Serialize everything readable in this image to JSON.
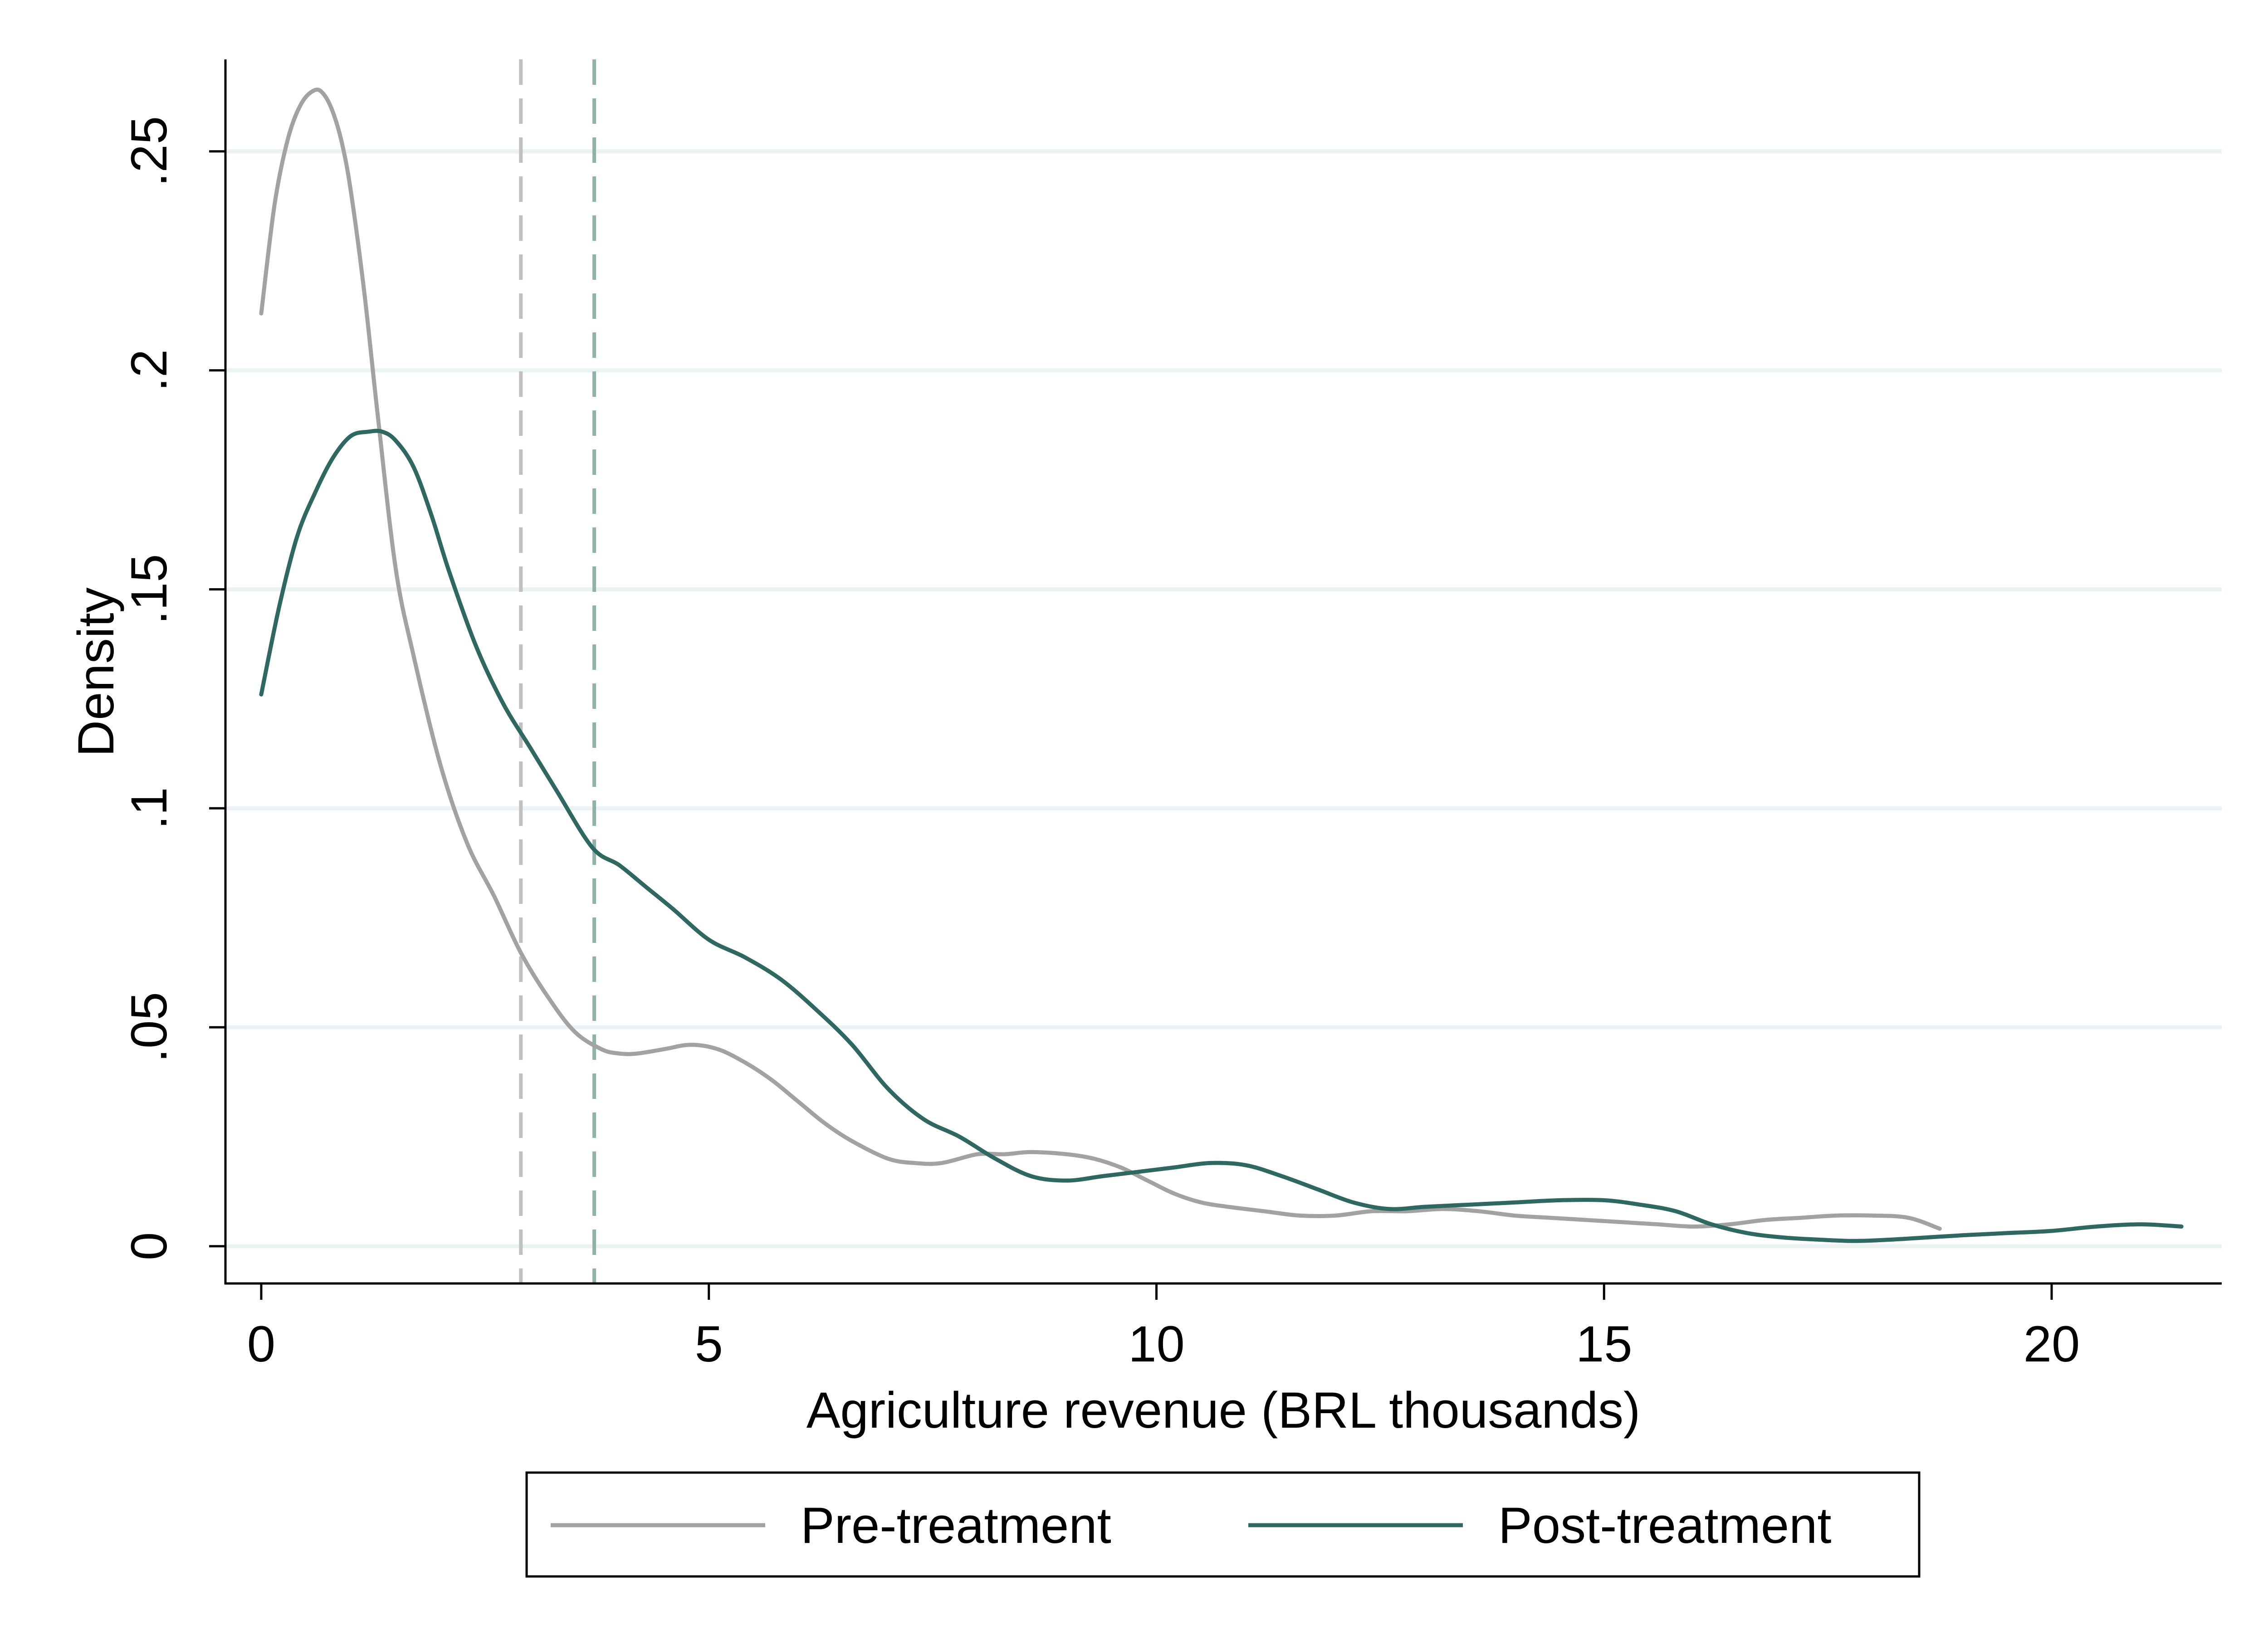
{
  "chart_data": {
    "type": "line",
    "title": "",
    "xlabel": "Agriculture revenue (BRL thousands)",
    "ylabel": "Density",
    "xlim": [
      -0.4,
      21.9
    ],
    "ylim": [
      -0.0085,
      0.271
    ],
    "x_ticks": [
      0,
      5,
      10,
      15,
      20
    ],
    "x_tick_labels": [
      "0",
      "5",
      "10",
      "15",
      "20"
    ],
    "y_ticks": [
      0,
      0.05,
      0.1,
      0.15,
      0.2,
      0.25
    ],
    "y_tick_labels": [
      "0",
      ".05",
      ".1",
      ".15",
      ".2",
      ".25"
    ],
    "grid": "horizontal",
    "legend_position": "bottom",
    "reference_lines": [
      {
        "x": 2.9,
        "style": "dashed",
        "color": "#c0c0c0"
      },
      {
        "x": 3.72,
        "style": "dashed",
        "color": "#8fb1a8"
      }
    ],
    "series": [
      {
        "name": "Pre-treatment",
        "color": "#a2a2a2",
        "x": [
          0,
          0.15,
          0.3,
          0.45,
          0.6,
          0.7,
          0.8,
          0.9,
          1.0,
          1.15,
          1.3,
          1.5,
          1.7,
          2.0,
          2.3,
          2.6,
          2.9,
          3.2,
          3.5,
          3.8,
          4.0,
          4.2,
          4.5,
          4.8,
          5.1,
          5.4,
          5.7,
          6.0,
          6.3,
          6.6,
          7.0,
          7.3,
          7.6,
          8.0,
          8.3,
          8.6,
          9.0,
          9.3,
          9.6,
          9.9,
          10.2,
          10.5,
          10.8,
          11.2,
          11.6,
          12.0,
          12.4,
          12.8,
          13.2,
          13.6,
          14.0,
          14.4,
          14.8,
          15.2,
          15.6,
          16.0,
          16.4,
          16.8,
          17.2,
          17.6,
          18.0,
          18.4,
          18.75
        ],
        "values": [
          0.213,
          0.238,
          0.253,
          0.261,
          0.264,
          0.263,
          0.259,
          0.252,
          0.241,
          0.218,
          0.19,
          0.155,
          0.135,
          0.11,
          0.092,
          0.08,
          0.067,
          0.057,
          0.049,
          0.045,
          0.044,
          0.044,
          0.045,
          0.046,
          0.045,
          0.042,
          0.038,
          0.033,
          0.028,
          0.024,
          0.02,
          0.019,
          0.019,
          0.021,
          0.021,
          0.0215,
          0.021,
          0.02,
          0.018,
          0.015,
          0.012,
          0.01,
          0.009,
          0.008,
          0.007,
          0.007,
          0.008,
          0.008,
          0.0085,
          0.008,
          0.007,
          0.0065,
          0.006,
          0.0055,
          0.005,
          0.0045,
          0.005,
          0.006,
          0.0065,
          0.007,
          0.007,
          0.0065,
          0.004
        ]
      },
      {
        "name": "Post-treatment",
        "color": "#2e6860",
        "x": [
          0,
          0.2,
          0.4,
          0.6,
          0.8,
          1.0,
          1.2,
          1.35,
          1.5,
          1.7,
          1.9,
          2.1,
          2.4,
          2.7,
          3.0,
          3.3,
          3.7,
          4.0,
          4.3,
          4.6,
          5.0,
          5.4,
          5.8,
          6.2,
          6.6,
          7.0,
          7.4,
          7.8,
          8.2,
          8.6,
          9.0,
          9.4,
          9.8,
          10.2,
          10.6,
          11.0,
          11.4,
          11.8,
          12.2,
          12.6,
          13.0,
          13.5,
          14.0,
          14.5,
          15.0,
          15.4,
          15.8,
          16.2,
          16.6,
          17.0,
          17.4,
          17.8,
          18.2,
          18.6,
          19.0,
          19.5,
          20.0,
          20.5,
          21.0,
          21.45
        ],
        "values": [
          0.126,
          0.146,
          0.162,
          0.172,
          0.18,
          0.185,
          0.186,
          0.186,
          0.184,
          0.178,
          0.167,
          0.154,
          0.137,
          0.124,
          0.114,
          0.104,
          0.091,
          0.087,
          0.082,
          0.077,
          0.07,
          0.066,
          0.061,
          0.054,
          0.046,
          0.036,
          0.029,
          0.025,
          0.02,
          0.016,
          0.015,
          0.016,
          0.017,
          0.018,
          0.019,
          0.0185,
          0.016,
          0.013,
          0.01,
          0.0085,
          0.009,
          0.0095,
          0.01,
          0.0105,
          0.0105,
          0.0095,
          0.008,
          0.005,
          0.003,
          0.002,
          0.0015,
          0.0012,
          0.0015,
          0.002,
          0.0025,
          0.003,
          0.0035,
          0.0045,
          0.005,
          0.0045
        ]
      }
    ]
  }
}
